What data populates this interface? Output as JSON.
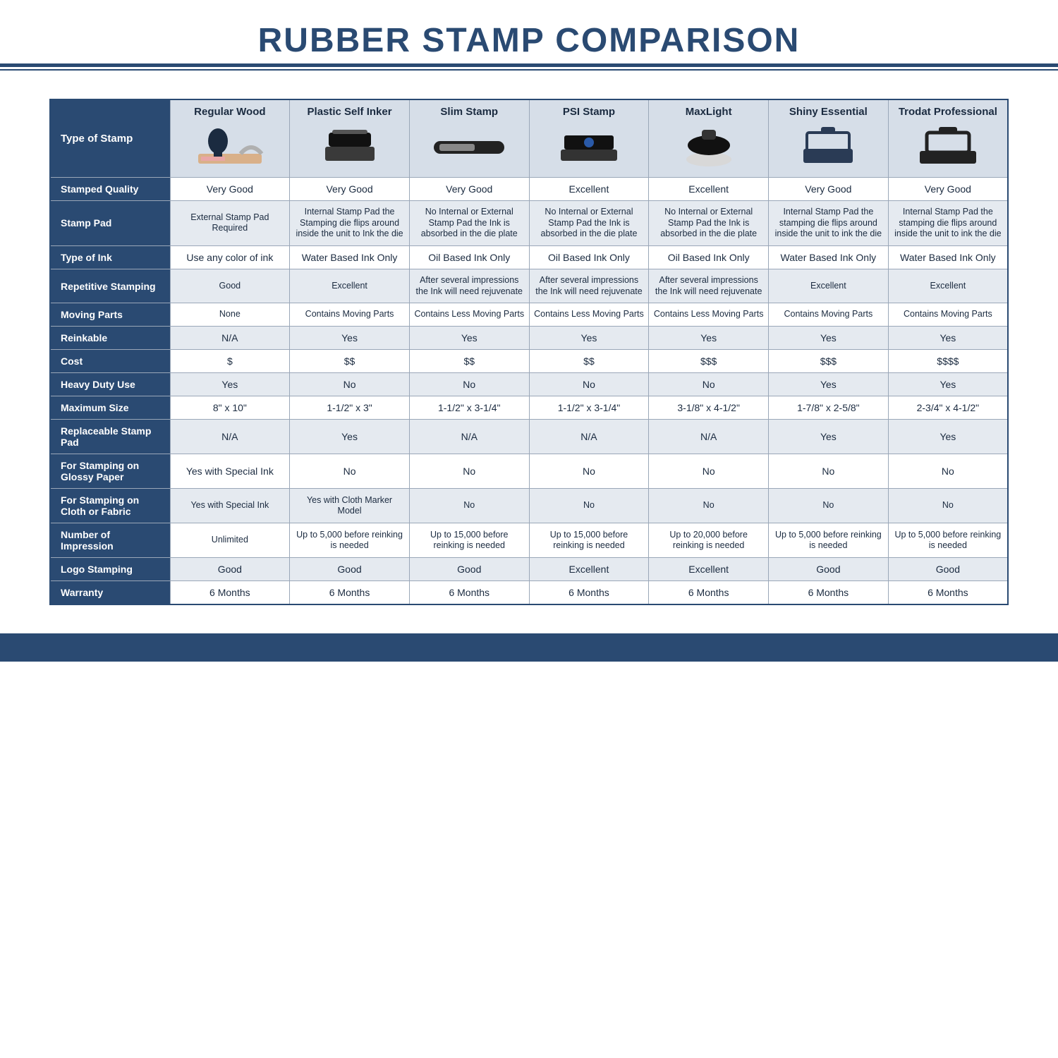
{
  "title": "RUBBER STAMP COMPARISON",
  "colors": {
    "brand": "#2a4a72",
    "shade": "#e5eaf0",
    "head_shade": "#d6dee8",
    "border": "#9aa7b8",
    "text": "#1b2b40"
  },
  "corner_label": "Type of Stamp",
  "columns": [
    {
      "label": "Regular Wood",
      "icon": "wood-stamp"
    },
    {
      "label": "Plastic Self Inker",
      "icon": "self-inker"
    },
    {
      "label": "Slim Stamp",
      "icon": "slim-stamp"
    },
    {
      "label": "PSI Stamp",
      "icon": "psi-stamp"
    },
    {
      "label": "MaxLight",
      "icon": "round-stamp"
    },
    {
      "label": "Shiny Essential",
      "icon": "frame-stamp"
    },
    {
      "label": "Trodat Professional",
      "icon": "pro-stamp"
    }
  ],
  "rows": [
    {
      "label": "Stamped Quality",
      "shade": false,
      "small": false,
      "cells": [
        "Very Good",
        "Very Good",
        "Very Good",
        "Excellent",
        "Excellent",
        "Very Good",
        "Very Good"
      ]
    },
    {
      "label": "Stamp Pad",
      "shade": true,
      "small": true,
      "cells": [
        "External Stamp Pad Required",
        "Internal Stamp Pad the Stamping die flips around inside the unit to Ink the die",
        "No Internal or External Stamp Pad the Ink is absorbed in the die plate",
        "No Internal or External Stamp Pad the Ink is absorbed in the die plate",
        "No Internal or External Stamp Pad the Ink is absorbed in the die plate",
        "Internal Stamp Pad the stamping die flips around inside the unit to ink the die",
        "Internal Stamp Pad the stamping die flips around inside the unit to ink the die"
      ]
    },
    {
      "label": "Type of Ink",
      "shade": false,
      "small": false,
      "cells": [
        "Use any color of ink",
        "Water Based Ink Only",
        "Oil Based Ink Only",
        "Oil Based Ink Only",
        "Oil Based Ink Only",
        "Water Based Ink Only",
        "Water Based Ink Only"
      ]
    },
    {
      "label": "Repetitive Stamping",
      "shade": true,
      "small": true,
      "cells": [
        "Good",
        "Excellent",
        "After several impressions the Ink will need rejuvenate",
        "After several impressions the Ink will need rejuvenate",
        "After several impressions the Ink will need rejuvenate",
        "Excellent",
        "Excellent"
      ]
    },
    {
      "label": "Moving Parts",
      "shade": false,
      "small": true,
      "cells": [
        "None",
        "Contains Moving Parts",
        "Contains Less Moving Parts",
        "Contains Less Moving Parts",
        "Contains Less Moving Parts",
        "Contains Moving Parts",
        "Contains Moving Parts"
      ]
    },
    {
      "label": "Reinkable",
      "shade": true,
      "small": false,
      "cells": [
        "N/A",
        "Yes",
        "Yes",
        "Yes",
        "Yes",
        "Yes",
        "Yes"
      ]
    },
    {
      "label": "Cost",
      "shade": false,
      "small": false,
      "cells": [
        "$",
        "$$",
        "$$",
        "$$",
        "$$$",
        "$$$",
        "$$$$"
      ]
    },
    {
      "label": "Heavy Duty Use",
      "shade": true,
      "small": false,
      "cells": [
        "Yes",
        "No",
        "No",
        "No",
        "No",
        "Yes",
        "Yes"
      ]
    },
    {
      "label": "Maximum Size",
      "shade": false,
      "small": false,
      "cells": [
        "8\" x 10\"",
        "1-1/2\" x 3\"",
        "1-1/2\" x 3-1/4\"",
        "1-1/2\" x 3-1/4\"",
        "3-1/8\" x 4-1/2\"",
        "1-7/8\" x 2-5/8\"",
        "2-3/4\" x 4-1/2\""
      ]
    },
    {
      "label": "Replaceable Stamp Pad",
      "shade": true,
      "small": false,
      "cells": [
        "N/A",
        "Yes",
        "N/A",
        "N/A",
        "N/A",
        "Yes",
        "Yes"
      ]
    },
    {
      "label": "For Stamping on Glossy Paper",
      "shade": false,
      "small": false,
      "cells": [
        "Yes with Special Ink",
        "No",
        "No",
        "No",
        "No",
        "No",
        "No"
      ]
    },
    {
      "label": "For Stamping on Cloth or Fabric",
      "shade": true,
      "small": true,
      "cells": [
        "Yes with Special Ink",
        "Yes with Cloth Marker Model",
        "No",
        "No",
        "No",
        "No",
        "No"
      ]
    },
    {
      "label": "Number of Impression",
      "shade": false,
      "small": true,
      "cells": [
        "Unlimited",
        "Up to 5,000 before reinking is needed",
        "Up to 15,000 before reinking is needed",
        "Up to 15,000 before reinking is needed",
        "Up to 20,000 before reinking is needed",
        "Up to 5,000 before reinking is needed",
        "Up to 5,000 before reinking is needed"
      ]
    },
    {
      "label": "Logo Stamping",
      "shade": true,
      "small": false,
      "cells": [
        "Good",
        "Good",
        "Good",
        "Excellent",
        "Excellent",
        "Good",
        "Good"
      ]
    },
    {
      "label": "Warranty",
      "shade": false,
      "small": false,
      "cells": [
        "6 Months",
        "6 Months",
        "6 Months",
        "6 Months",
        "6 Months",
        "6 Months",
        "6 Months"
      ]
    }
  ]
}
